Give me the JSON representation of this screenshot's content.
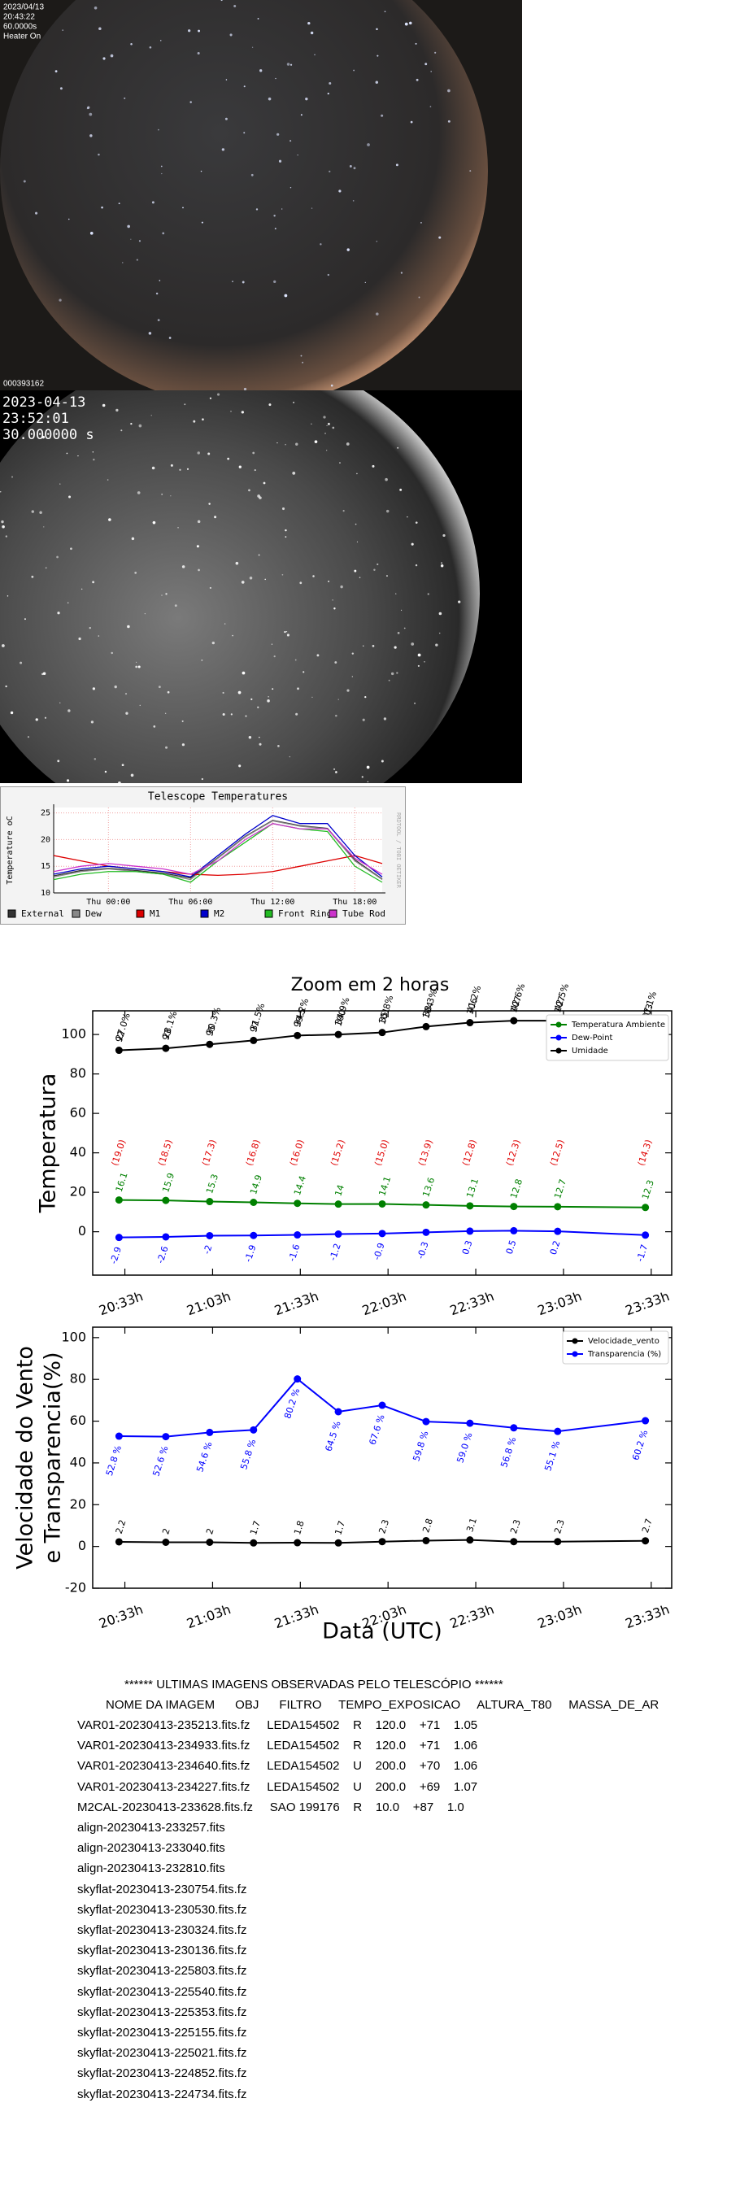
{
  "images": [
    {
      "overlay": [
        "2023/04/13",
        "20:43:22",
        "60.0000s",
        "Heater On"
      ],
      "id": "000393162"
    },
    {
      "overlay": [
        "2023-04-13",
        "23:52:01",
        "30.000000 s"
      ]
    }
  ],
  "chart_data": [
    {
      "type": "line",
      "title": "Telescope Temperatures",
      "y_label": "Temperature oC",
      "side_text": "RRDTOOL / TOBI OETIKER",
      "categories": [
        null,
        null,
        "Thu 00:00",
        null,
        null,
        "Thu 06:00",
        null,
        null,
        "Thu 12:00",
        null,
        null,
        "Thu 18:00",
        null
      ],
      "ylim": [
        10,
        26
      ],
      "yticks": [
        10,
        15,
        20,
        25
      ],
      "grid": true,
      "legend": "bottom",
      "series": [
        {
          "name": "External",
          "color": "#333333",
          "values": [
            13.2,
            14.2,
            14.6,
            14.2,
            13.7,
            12.8,
            16.6,
            20.6,
            23.6,
            22.6,
            22.1,
            16.2,
            12.6
          ]
        },
        {
          "name": "Dew",
          "color": "#888888",
          "values": [
            13,
            14,
            14.5,
            14,
            13.5,
            12.5,
            16.5,
            20.5,
            23.5,
            22.5,
            22,
            16,
            12.5
          ]
        },
        {
          "name": "M1",
          "color": "#dd0000",
          "values": [
            17,
            16,
            15,
            14.5,
            14,
            13.5,
            13.3,
            13.5,
            14,
            15,
            16,
            17,
            15.5
          ]
        },
        {
          "name": "M2",
          "color": "#0000cc",
          "values": [
            13.5,
            14.5,
            15,
            14.5,
            14,
            13,
            17,
            21,
            24.5,
            23,
            23,
            17,
            13
          ]
        },
        {
          "name": "Front Ring",
          "color": "#22bb22",
          "values": [
            12.5,
            13.5,
            14,
            14,
            13.5,
            12,
            16,
            19.5,
            23,
            22,
            21.5,
            15,
            12
          ]
        },
        {
          "name": "Tube Rod",
          "color": "#cc33cc",
          "values": [
            14,
            15,
            15.5,
            15,
            14.5,
            13.5,
            16,
            20,
            23,
            22,
            22,
            16.5,
            13.5
          ]
        }
      ]
    },
    {
      "type": "line",
      "title": "Zoom em 2 horas",
      "y_label": [
        "Temperatura"
      ],
      "x": [
        1231,
        1247,
        1262,
        1277,
        1292,
        1306,
        1321,
        1336,
        1351,
        1366,
        1381,
        1411
      ],
      "xlim": [
        1222,
        1420
      ],
      "xticks": [
        {
          "value": 1233,
          "label": "20:33h"
        },
        {
          "value": 1263,
          "label": "21:03h"
        },
        {
          "value": 1293,
          "label": "21:33h"
        },
        {
          "value": 1323,
          "label": "22:03h"
        },
        {
          "value": 1353,
          "label": "22:33h"
        },
        {
          "value": 1383,
          "label": "23:03h"
        },
        {
          "value": 1413,
          "label": "23:33h"
        }
      ],
      "ylim": [
        -22,
        112
      ],
      "yticks": [
        0,
        20,
        40,
        60,
        80,
        100
      ],
      "legend": "upper right",
      "series": [
        {
          "name": "Temperatura Ambiente",
          "color": "#008000",
          "values": [
            16.1,
            15.9,
            15.3,
            14.9,
            14.4,
            14.0,
            14.1,
            13.6,
            13.1,
            12.8,
            12.7,
            12.3
          ]
        },
        {
          "name": "Dew-Point",
          "color": "#0000ff",
          "values": [
            -2.9,
            -2.6,
            -2.0,
            -1.9,
            -1.6,
            -1.2,
            -0.9,
            -0.3,
            0.3,
            0.5,
            0.2,
            -1.7
          ]
        },
        {
          "name": "Umidade",
          "color": "#000000",
          "values": [
            92,
            93,
            95,
            97,
            99.5,
            100,
            101,
            104,
            106,
            107,
            107,
            103
          ]
        }
      ],
      "annotations": [
        {
          "color": "#000000",
          "texts": [
            "27.0%",
            "28.1%",
            "30.3%",
            "31.5%",
            "34.2%",
            "34.9%",
            "35.8%",
            "38.3%",
            "41.2%",
            "42.6%",
            "42.5%",
            "37.1%"
          ]
        },
        {
          "color": "#e00000",
          "texts": [
            "(19.0)",
            "(18.5)",
            "(17.3)",
            "(16.8)",
            "(16.0)",
            "(15.2)",
            "(15.0)",
            "(13.9)",
            "(12.8)",
            "(12.3)",
            "(12.5)",
            "(14.3)"
          ]
        }
      ]
    },
    {
      "type": "line",
      "y_label": [
        "Velocidade do Vento",
        "e Transparencia(%)"
      ],
      "x_label": "Data (UTC)",
      "x": [
        1231,
        1247,
        1262,
        1277,
        1292,
        1306,
        1321,
        1336,
        1351,
        1366,
        1381,
        1411
      ],
      "xlim": [
        1222,
        1420
      ],
      "xticks": [
        {
          "value": 1233,
          "label": "20:33h"
        },
        {
          "value": 1263,
          "label": "21:03h"
        },
        {
          "value": 1293,
          "label": "21:33h"
        },
        {
          "value": 1323,
          "label": "22:03h"
        },
        {
          "value": 1353,
          "label": "22:33h"
        },
        {
          "value": 1383,
          "label": "23:03h"
        },
        {
          "value": 1413,
          "label": "23:33h"
        }
      ],
      "ylim": [
        -20,
        105
      ],
      "yticks": [
        -20,
        0,
        20,
        40,
        60,
        80,
        100
      ],
      "legend": "upper right",
      "series": [
        {
          "name": "Velocidade_vento",
          "color": "#000000",
          "values": [
            2.2,
            2.0,
            2.0,
            1.7,
            1.8,
            1.7,
            2.3,
            2.8,
            3.1,
            2.3,
            2.3,
            2.7
          ]
        },
        {
          "name": "Transparencia (%)",
          "color": "#0000ff",
          "values": [
            52.8,
            52.6,
            54.6,
            55.8,
            80.2,
            64.5,
            67.6,
            59.8,
            59.0,
            56.8,
            55.1,
            60.2
          ],
          "value_labels": [
            "52.8 %",
            "52.6 %",
            "54.6 %",
            "55.8 %",
            "80.2 %",
            "64.5 %",
            "67.6 %",
            "59.8 %",
            "59.0 %",
            "56.8 %",
            "55.1 %",
            "60.2 %"
          ]
        }
      ]
    }
  ],
  "observations": {
    "title": "****** ULTIMAS IMAGENS OBSERVADAS PELO TELESCÓPIO ******",
    "header": "NOME DA IMAGEM      OBJ      FILTRO     TEMPO_EXPOSICAO     ALTURA_T80     MASSA_DE_AR",
    "rows": [
      "VAR01-20230413-235213.fits.fz     LEDA154502    R    120.0    +71    1.05",
      "VAR01-20230413-234933.fits.fz     LEDA154502    R    120.0    +71    1.06",
      "VAR01-20230413-234640.fits.fz     LEDA154502    U    200.0    +70    1.06",
      "VAR01-20230413-234227.fits.fz     LEDA154502    U    200.0    +69    1.07",
      "M2CAL-20230413-233628.fits.fz     SAO 199176    R    10.0    +87    1.0",
      "align-20230413-233257.fits",
      "align-20230413-233040.fits",
      "align-20230413-232810.fits",
      "skyflat-20230413-230754.fits.fz",
      "skyflat-20230413-230530.fits.fz",
      "skyflat-20230413-230324.fits.fz",
      "skyflat-20230413-230136.fits.fz",
      "skyflat-20230413-225803.fits.fz",
      "skyflat-20230413-225540.fits.fz",
      "skyflat-20230413-225353.fits.fz",
      "skyflat-20230413-225155.fits.fz",
      "skyflat-20230413-225021.fits.fz",
      "skyflat-20230413-224852.fits.fz",
      "skyflat-20230413-224734.fits.fz"
    ]
  }
}
